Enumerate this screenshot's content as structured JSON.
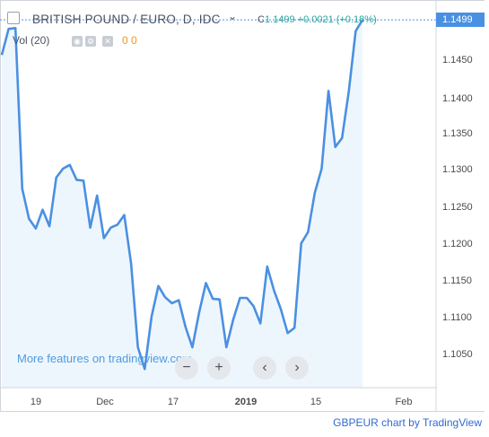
{
  "header": {
    "title": "BRITISH POUND / EURO, D, IDC",
    "chevron": "⌄",
    "ohlc_prefix": "C",
    "ohlc_close": "1.1499",
    "ohlc_change": "+0.0021 (+0.18%)",
    "vol_label": "Vol (20)",
    "vol_value": "0 0"
  },
  "promo": "More features on tradingview.com",
  "nav": {
    "zoom_out": "−",
    "zoom_in": "+",
    "prev": "‹",
    "next": "›"
  },
  "last_price_tag": "1.1499",
  "attribution": "GBPEUR chart by TradingView",
  "colors": {
    "line": "#4a90e2",
    "area": "#eef6fd",
    "accent": "#26a69a"
  },
  "chart_data": {
    "type": "line",
    "x_ticks": [
      "19",
      "Dec",
      "17",
      "2019",
      "15",
      "Feb"
    ],
    "y_ticks": [
      "1.1450",
      "1.1400",
      "1.1350",
      "1.1300",
      "1.1250",
      "1.1200",
      "1.1150",
      "1.1100",
      "1.1050"
    ],
    "ylim": [
      1.1007,
      1.1516
    ],
    "series": [
      {
        "values": [
          1.1452,
          1.1487,
          1.1488,
          1.1273,
          1.1233,
          1.122,
          1.1245,
          1.1223,
          1.1288,
          1.13,
          1.1305,
          1.1285,
          1.1284,
          1.1221,
          1.1264,
          1.1207,
          1.1221,
          1.1225,
          1.1238,
          1.1173,
          1.1061,
          1.1032,
          1.1102,
          1.1143,
          1.1128,
          1.112,
          1.1124,
          1.1088,
          1.1061,
          1.1108,
          1.1147,
          1.1126,
          1.1125,
          1.1061,
          1.1098,
          1.1127,
          1.1127,
          1.1116,
          1.1093,
          1.1169,
          1.1137,
          1.1112,
          1.108,
          1.1087,
          1.12,
          1.1215,
          1.1268,
          1.13,
          1.1404,
          1.1329,
          1.1341,
          1.1404,
          1.1484,
          1.1499
        ]
      }
    ]
  }
}
